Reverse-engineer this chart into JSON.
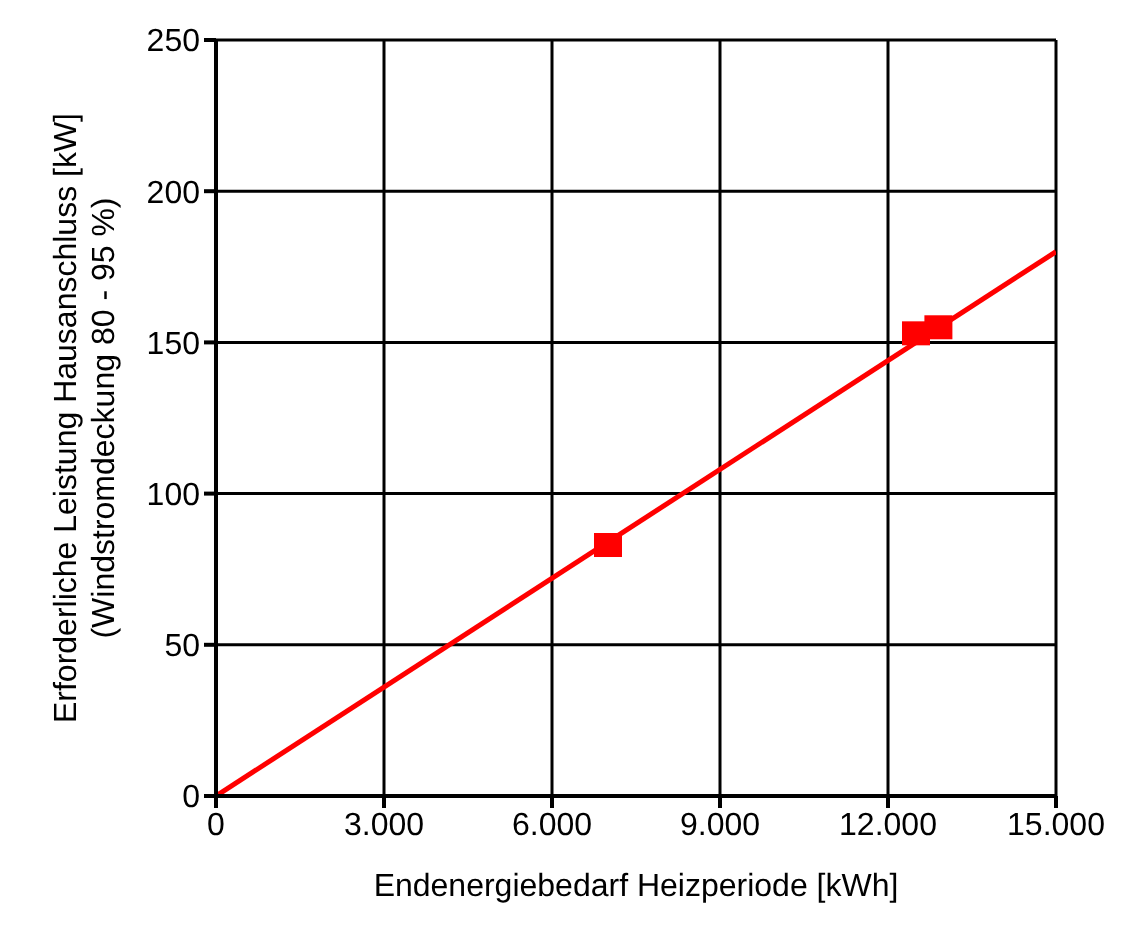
{
  "chart_data": {
    "type": "scatter",
    "xlabel": "Endenergiebedarf Heizperiode [kWh]",
    "ylabel": "Erforderliche Leistung Hausanschluss [kW]\n(Windstromdeckung 80 - 95 %)",
    "xlim": [
      0,
      15000
    ],
    "xticks": [
      0,
      {
        "value": 3000,
        "label": "3.000"
      },
      {
        "value": 6000,
        "label": "6.000"
      },
      {
        "value": 9000,
        "label": "9.000"
      },
      {
        "value": 12000,
        "label": "12.000"
      },
      {
        "value": 15000,
        "label": "15.000"
      }
    ],
    "ylim": [
      0,
      250
    ],
    "yticks": [
      0,
      50,
      100,
      150,
      200,
      250
    ],
    "grid": true,
    "series": [
      {
        "type": "line",
        "color": "#ff0000",
        "x": [
          0,
          15000
        ],
        "values": [
          0,
          180
        ],
        "marker": "none"
      },
      {
        "color": "#ff0000",
        "x": [
          7000,
          12500,
          12900
        ],
        "values": [
          83,
          153,
          155
        ],
        "marker": "square"
      }
    ]
  }
}
